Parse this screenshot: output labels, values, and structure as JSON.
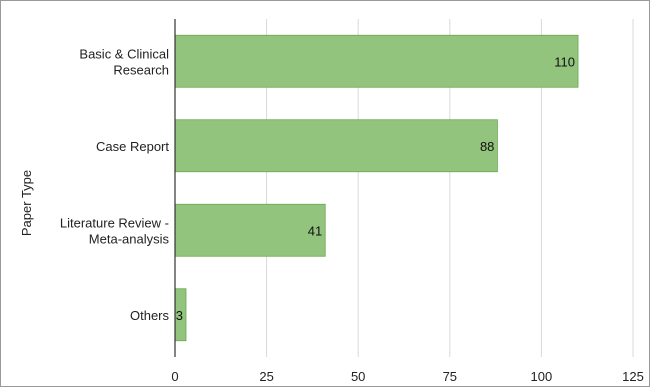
{
  "chart_data": {
    "type": "bar",
    "orientation": "horizontal",
    "title": "",
    "xlabel": "",
    "ylabel": "Paper Type",
    "categories": [
      [
        "Basic & Clinical",
        "Research"
      ],
      [
        "Case Report"
      ],
      [
        "Literature Review -",
        "Meta-analysis"
      ],
      [
        "Others"
      ]
    ],
    "values": [
      110,
      88,
      41,
      3
    ],
    "data_labels": [
      "110",
      "88",
      "41",
      "3"
    ],
    "xlim": [
      0,
      125
    ],
    "xticks": [
      0,
      25,
      50,
      75,
      100,
      125
    ],
    "xtick_labels": [
      "0",
      "25",
      "50",
      "75",
      "100",
      "125"
    ],
    "grid": "vertical",
    "legend": "none",
    "bar_color": "#93c47d",
    "bar_edge_color": "#6aa84f"
  }
}
